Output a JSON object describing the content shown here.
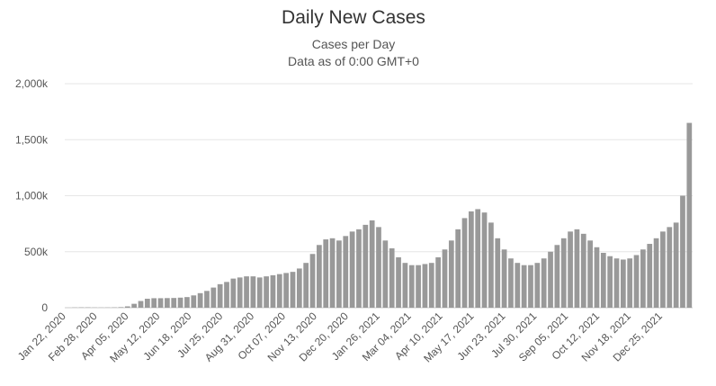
{
  "chart_data": {
    "type": "bar",
    "title": "Daily New Cases",
    "subtitle": "Cases per Day",
    "subtitle2": "Data as of 0:00 GMT+0",
    "xlabel": "",
    "ylabel": "",
    "ylim": [
      0,
      2000000
    ],
    "y_ticks": [
      {
        "value": 0,
        "label": "0"
      },
      {
        "value": 500000,
        "label": "500k"
      },
      {
        "value": 1000000,
        "label": "1,000k"
      },
      {
        "value": 1500000,
        "label": "1,500k"
      },
      {
        "value": 2000000,
        "label": "2,000k"
      }
    ],
    "x_tick_labels": [
      "Jan 22, 2020",
      "Feb 28, 2020",
      "Apr 05, 2020",
      "May 12, 2020",
      "Jun 18, 2020",
      "Jul 25, 2020",
      "Aug 31, 2020",
      "Oct 07, 2020",
      "Nov 13, 2020",
      "Dec 20, 2020",
      "Jan 26, 2021",
      "Mar 04, 2021",
      "Apr 10, 2021",
      "May 17, 2021",
      "Jun 23, 2021",
      "Jul 30, 2021",
      "Sep 05, 2021",
      "Oct 12, 2021",
      "Nov 18, 2021",
      "Dec 25, 2021"
    ],
    "start_date": "2020-01-22",
    "step_days": 7,
    "series": [
      {
        "color": "#999999",
        "values": [
          500,
          2000,
          3000,
          3000,
          1800,
          1500,
          2000,
          3000,
          5000,
          12000,
          35000,
          60000,
          80000,
          85000,
          85000,
          86000,
          87000,
          90000,
          95000,
          110000,
          130000,
          150000,
          180000,
          210000,
          230000,
          260000,
          270000,
          280000,
          280000,
          270000,
          280000,
          290000,
          300000,
          310000,
          320000,
          350000,
          400000,
          480000,
          560000,
          610000,
          620000,
          600000,
          640000,
          680000,
          700000,
          740000,
          780000,
          720000,
          600000,
          530000,
          450000,
          400000,
          380000,
          380000,
          390000,
          400000,
          450000,
          520000,
          600000,
          700000,
          800000,
          860000,
          880000,
          850000,
          760000,
          620000,
          520000,
          440000,
          400000,
          380000,
          380000,
          400000,
          440000,
          500000,
          560000,
          620000,
          680000,
          700000,
          660000,
          600000,
          540000,
          490000,
          460000,
          440000,
          430000,
          440000,
          470000,
          520000,
          570000,
          620000,
          680000,
          720000,
          760000,
          1000000,
          1650000
        ]
      }
    ],
    "grid": true,
    "legend": "none"
  }
}
